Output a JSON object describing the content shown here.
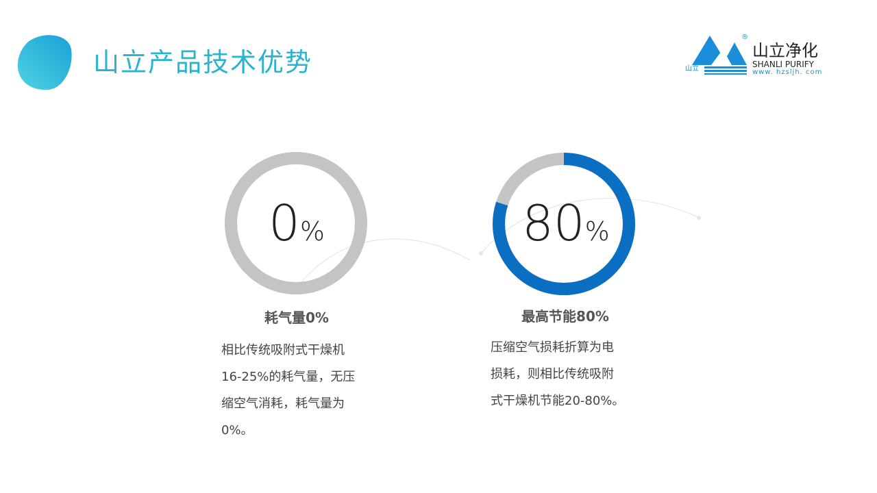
{
  "header": {
    "title": "山立产品技术优势"
  },
  "logo": {
    "name_cn": "山立净化",
    "name_en": "SHANLI PURIFY",
    "url": "www. hzsljh. com",
    "small": "山立",
    "registered": "®",
    "color": "#1a8ed8"
  },
  "cards": [
    {
      "value": "0",
      "unit": "%",
      "percent": 0,
      "title": "耗气量0%",
      "lines": [
        "相比传统吸附式干燥机",
        "16-25%的耗气量，无压",
        "缩空气消耗，耗气量为",
        "0%。"
      ]
    },
    {
      "value": "80",
      "unit": "%",
      "percent": 80,
      "title": "最高节能80%",
      "lines": [
        "压缩空气损耗折算为电",
        "损耗，则相比传统吸附",
        "式干燥机节能20-80%。"
      ]
    }
  ],
  "colors": {
    "accent": "#2ab3cf",
    "ring_fill": "#0a6fc2",
    "ring_track": "#c4c4c4"
  }
}
